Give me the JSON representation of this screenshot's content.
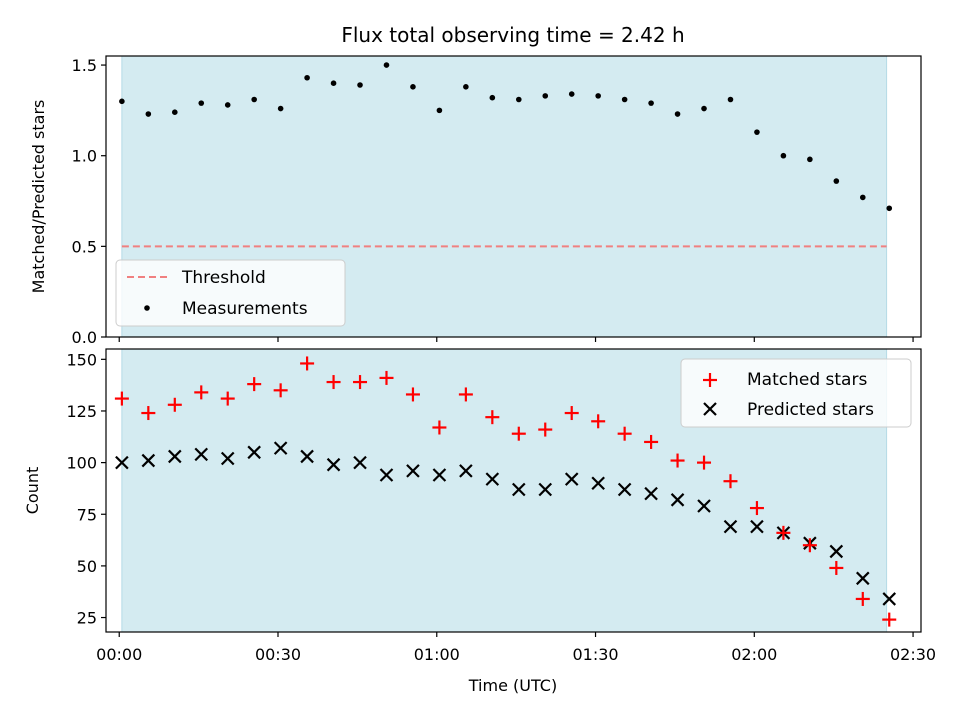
{
  "figure": {
    "title": "Flux total observing time = 2.42 h",
    "xlabel": "Time (UTC)",
    "x_ticks": [
      "00:00",
      "00:30",
      "01:00",
      "01:30",
      "02:00",
      "02:30"
    ]
  },
  "colors": {
    "shade": "#d4ebf1",
    "shade_edge": "#b5dbe6",
    "threshold": "#f08080",
    "measurements": "#000000",
    "matched": "#ff0000",
    "predicted": "#000000"
  },
  "chart_data": [
    {
      "type": "scatter",
      "ylabel": "Matched/Predicted stars",
      "xlim": [
        -2.5,
        151.5
      ],
      "ylim": [
        0,
        1.55
      ],
      "y_ticks": [
        "0.0",
        "0.5",
        "1.0",
        "1.5"
      ],
      "y_tick_values": [
        0,
        0.5,
        1.0,
        1.5
      ],
      "shaded_span": [
        0.5,
        145
      ],
      "threshold": {
        "name": "Threshold",
        "value": 0.5,
        "x_range": [
          0.5,
          145
        ]
      },
      "legend_position": "lower-left",
      "series": [
        {
          "name": "Measurements",
          "x": [
            0.5,
            5.5,
            10.5,
            15.5,
            20.5,
            25.5,
            30.5,
            35.5,
            40.5,
            45.5,
            50.5,
            55.5,
            60.5,
            65.5,
            70.5,
            75.5,
            80.5,
            85.5,
            90.5,
            95.5,
            100.5,
            105.5,
            110.5,
            115.5,
            120.5,
            125.5,
            130.5,
            135.5,
            140.5,
            145.5
          ],
          "y": [
            1.3,
            1.23,
            1.24,
            1.29,
            1.28,
            1.31,
            1.26,
            1.43,
            1.4,
            1.39,
            1.5,
            1.38,
            1.25,
            1.38,
            1.32,
            1.31,
            1.33,
            1.34,
            1.33,
            1.31,
            1.29,
            1.23,
            1.26,
            1.31,
            1.13,
            1.0,
            0.98,
            0.86,
            0.77,
            0.71
          ]
        }
      ]
    },
    {
      "type": "scatter",
      "ylabel": "Count",
      "xlim": [
        -2.5,
        151.5
      ],
      "ylim": [
        18,
        155
      ],
      "y_ticks": [
        "25",
        "50",
        "75",
        "100",
        "125",
        "150"
      ],
      "y_tick_values": [
        25,
        50,
        75,
        100,
        125,
        150
      ],
      "shaded_span": [
        0.5,
        145
      ],
      "legend_position": "upper-right",
      "series": [
        {
          "name": "Matched stars",
          "marker": "plus",
          "x": [
            0.5,
            5.5,
            10.5,
            15.5,
            20.5,
            25.5,
            30.5,
            35.5,
            40.5,
            45.5,
            50.5,
            55.5,
            60.5,
            65.5,
            70.5,
            75.5,
            80.5,
            85.5,
            90.5,
            95.5,
            100.5,
            105.5,
            110.5,
            115.5,
            120.5,
            125.5,
            130.5,
            135.5,
            140.5,
            145.5
          ],
          "y": [
            131,
            124,
            128,
            134,
            131,
            138,
            135,
            148,
            139,
            139,
            141,
            133,
            117,
            133,
            122,
            114,
            116,
            124,
            120,
            114,
            110,
            101,
            100,
            91,
            78,
            66,
            60,
            49,
            34,
            24
          ]
        },
        {
          "name": "Predicted stars",
          "marker": "x",
          "x": [
            0.5,
            5.5,
            10.5,
            15.5,
            20.5,
            25.5,
            30.5,
            35.5,
            40.5,
            45.5,
            50.5,
            55.5,
            60.5,
            65.5,
            70.5,
            75.5,
            80.5,
            85.5,
            90.5,
            95.5,
            100.5,
            105.5,
            110.5,
            115.5,
            120.5,
            125.5,
            130.5,
            135.5,
            140.5,
            145.5
          ],
          "y": [
            100,
            101,
            103,
            104,
            102,
            105,
            107,
            103,
            99,
            100,
            94,
            96,
            94,
            96,
            92,
            87,
            87,
            92,
            90,
            87,
            85,
            82,
            79,
            69,
            69,
            66,
            61,
            57,
            44,
            34
          ]
        }
      ]
    }
  ]
}
